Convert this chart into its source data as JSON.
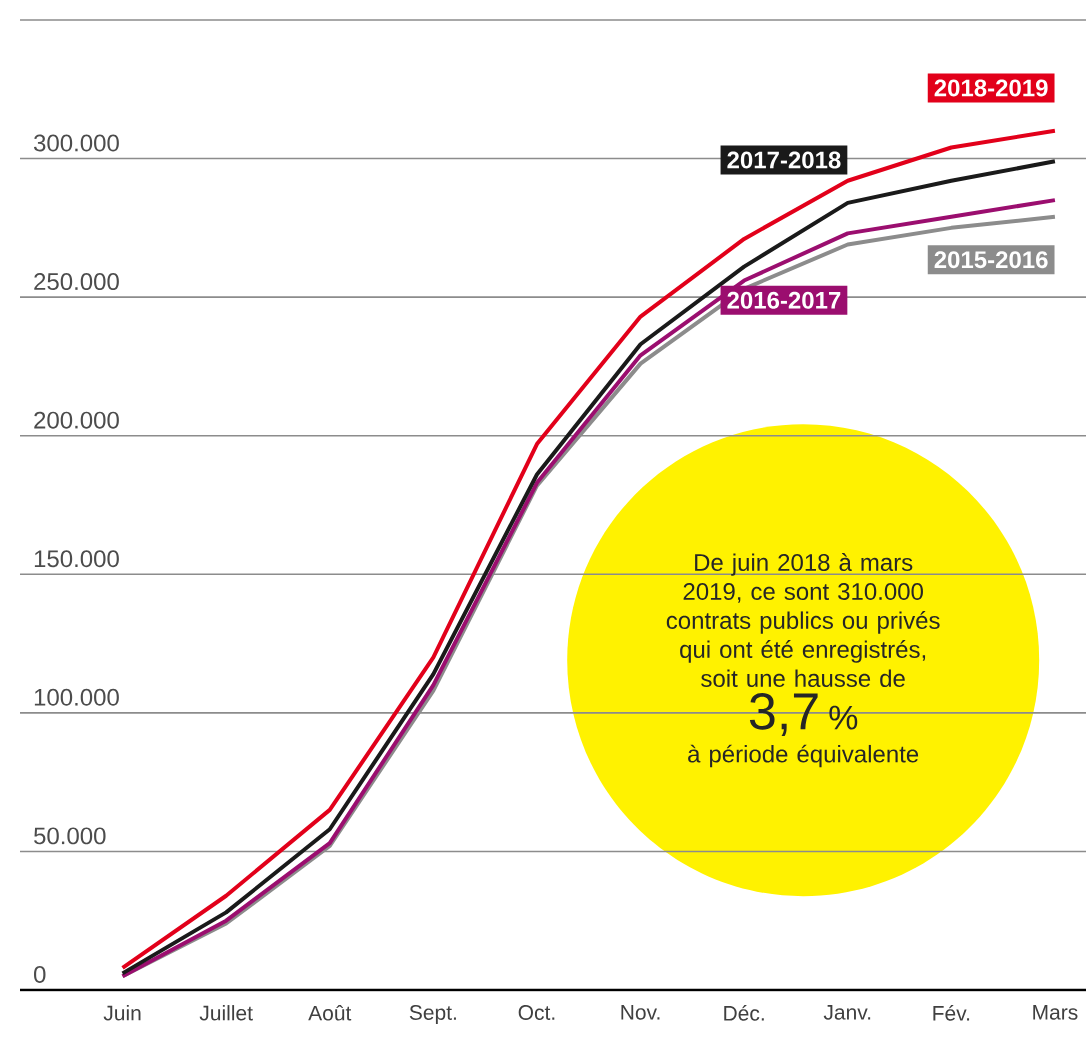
{
  "chart_data": {
    "type": "line",
    "categories": [
      "Juin",
      "Juillet",
      "Août",
      "Sept.",
      "Oct.",
      "Nov.",
      "Déc.",
      "Janv.",
      "Fév.",
      "Mars"
    ],
    "series": [
      {
        "name": "2015-2016",
        "color": "#8c8c8c",
        "values": [
          5000,
          24000,
          52000,
          108000,
          182000,
          226000,
          253000,
          269000,
          275000,
          279000
        ]
      },
      {
        "name": "2016-2017",
        "color": "#9b0e6f",
        "values": [
          5000,
          25000,
          53000,
          110000,
          183000,
          229000,
          256000,
          273000,
          279000,
          285000
        ]
      },
      {
        "name": "2017-2018",
        "color": "#1a1a1a",
        "values": [
          6000,
          28000,
          58000,
          114000,
          186000,
          233000,
          261000,
          284000,
          292000,
          299000
        ]
      },
      {
        "name": "2018-2019",
        "color": "#e2001a",
        "values": [
          8000,
          34000,
          65000,
          120000,
          197000,
          243000,
          271000,
          292000,
          304000,
          310000
        ]
      }
    ],
    "ylim": [
      0,
      350000
    ],
    "yticks": [
      {
        "value": 0,
        "label": "0"
      },
      {
        "value": 50000,
        "label": "50.000"
      },
      {
        "value": 100000,
        "label": "100.000"
      },
      {
        "value": 150000,
        "label": "150.000"
      },
      {
        "value": 200000,
        "label": "200.000"
      },
      {
        "value": 250000,
        "label": "250.000"
      },
      {
        "value": 300000,
        "label": "300.000"
      },
      {
        "value": 350000,
        "label": null
      }
    ],
    "grid": "y",
    "legend": false,
    "marker": "none",
    "annotations": [
      "De juin 2018 à mars 2019, ce sont 310.000 contrats publics ou privés qui ont été enregistrés, soit une hausse de",
      "3,7",
      "%",
      "à période équivalente"
    ]
  }
}
